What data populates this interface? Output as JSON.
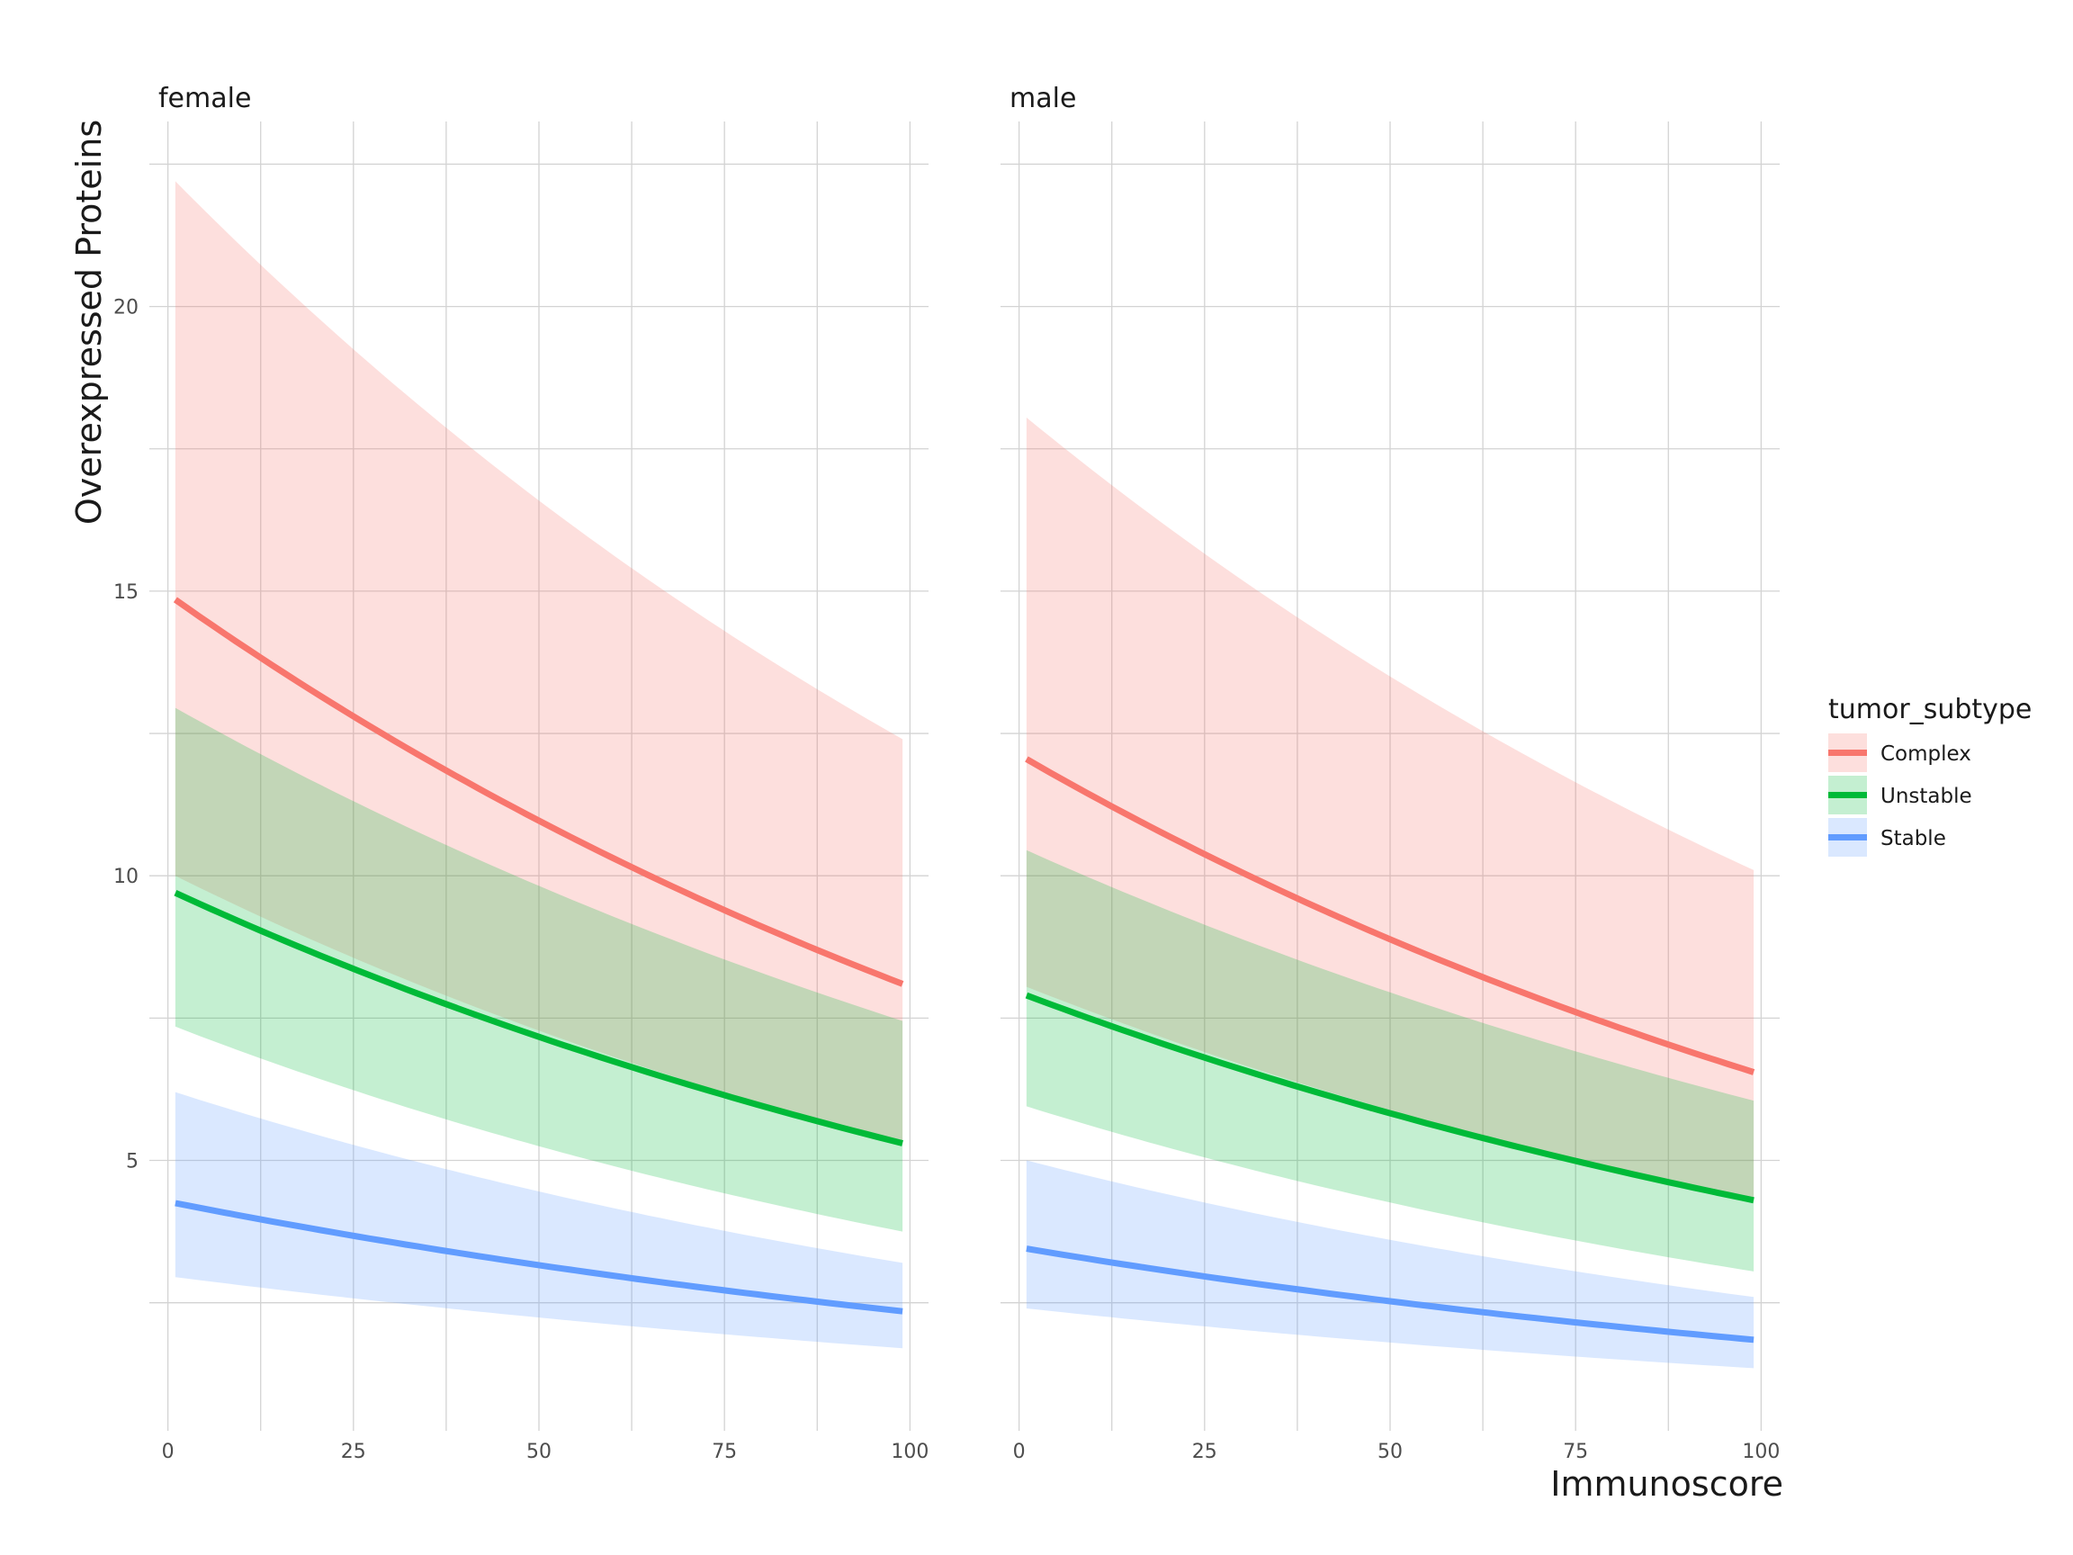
{
  "chart_data": {
    "type": "line",
    "facet_by": "sex",
    "panels": [
      {
        "label": "female",
        "series": [
          {
            "name": "Complex",
            "x": [
              1,
              99
            ],
            "values": [
              14.85,
              8.1
            ],
            "lower": [
              10.0,
              5.3
            ],
            "upper": [
              22.2,
              12.4
            ]
          },
          {
            "name": "Unstable",
            "x": [
              1,
              99
            ],
            "values": [
              9.7,
              5.3
            ],
            "lower": [
              7.35,
              3.75
            ],
            "upper": [
              12.95,
              7.45
            ]
          },
          {
            "name": "Stable",
            "x": [
              1,
              99
            ],
            "values": [
              4.25,
              2.35
            ],
            "lower": [
              2.95,
              1.7
            ],
            "upper": [
              6.2,
              3.2
            ]
          }
        ]
      },
      {
        "label": "male",
        "series": [
          {
            "name": "Complex",
            "x": [
              1,
              99
            ],
            "values": [
              12.05,
              6.55
            ],
            "lower": [
              8.05,
              4.3
            ],
            "upper": [
              18.05,
              10.1
            ]
          },
          {
            "name": "Unstable",
            "x": [
              1,
              99
            ],
            "values": [
              7.9,
              4.3
            ],
            "lower": [
              5.95,
              3.05
            ],
            "upper": [
              10.45,
              6.05
            ]
          },
          {
            "name": "Stable",
            "x": [
              1,
              99
            ],
            "values": [
              3.45,
              1.85
            ],
            "lower": [
              2.4,
              1.35
            ],
            "upper": [
              5.0,
              2.6
            ]
          }
        ]
      }
    ],
    "xlabel": "Immunoscore",
    "ylabel": "Overexpressed Proteins",
    "xlim": [
      -2.5,
      102.5
    ],
    "ylim": [
      0.25,
      23.25
    ],
    "x_ticks": [
      0,
      25,
      50,
      75,
      100
    ],
    "y_ticks": [
      5,
      10,
      15,
      20
    ],
    "grid": true,
    "legend": {
      "title": "tumor_subtype",
      "position": "right",
      "items": [
        "Complex",
        "Unstable",
        "Stable"
      ]
    },
    "colors": {
      "Complex": "#F8766D",
      "Unstable": "#00BA38",
      "Stable": "#619CFF"
    },
    "curve": "exponential decay with 95% confidence ribbon"
  }
}
